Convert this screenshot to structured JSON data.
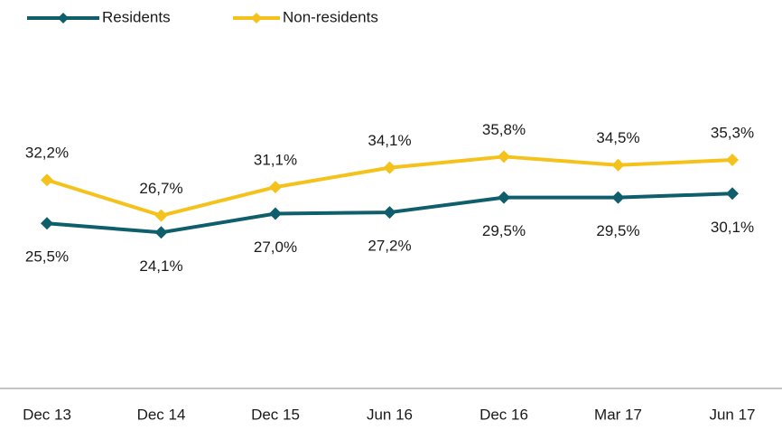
{
  "chart_data": {
    "type": "line",
    "categories": [
      "Dec 13",
      "Dec 14",
      "Dec 15",
      "Jun 16",
      "Dec 16",
      "Mar 17",
      "Jun 17"
    ],
    "series": [
      {
        "name": "Residents",
        "color": "#0f5e6b",
        "values": [
          25.5,
          24.1,
          27.0,
          27.2,
          29.5,
          29.5,
          30.1
        ],
        "value_labels": [
          "25,5%",
          "24,1%",
          "27,0%",
          "27,2%",
          "29,5%",
          "29,5%",
          "30,1%"
        ]
      },
      {
        "name": "Non-residents",
        "color": "#f5c21b",
        "values": [
          32.2,
          26.7,
          31.1,
          34.1,
          35.8,
          34.5,
          35.3
        ],
        "value_labels": [
          "32,2%",
          "26,7%",
          "31,1%",
          "34,1%",
          "35,8%",
          "34,5%",
          "35,3%"
        ]
      }
    ],
    "ylim": [
      0,
      60
    ],
    "legend": "top-left"
  }
}
